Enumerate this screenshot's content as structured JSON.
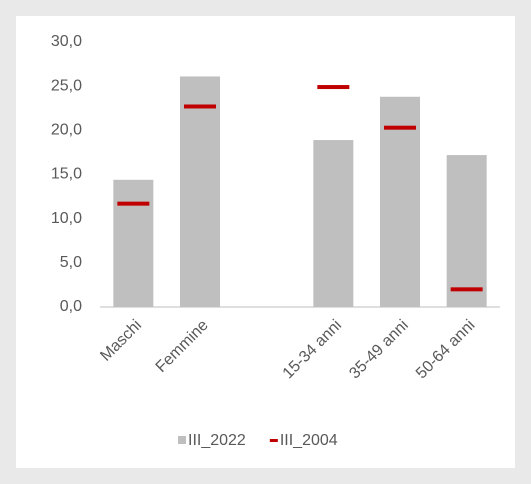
{
  "chart_data": {
    "type": "bar",
    "categories": [
      "Maschi",
      "Femmine",
      null,
      "15-34 anni",
      "35-49 anni",
      "50-64 anni"
    ],
    "series": [
      {
        "name": "III_2022",
        "color": "#bfbfbf",
        "mark": "bar",
        "values": [
          14.4,
          26.1,
          null,
          18.9,
          23.8,
          17.2
        ]
      },
      {
        "name": "III_2004",
        "color": "#c00000",
        "mark": "dash",
        "values": [
          11.7,
          22.7,
          null,
          24.9,
          20.3,
          2.0
        ]
      }
    ],
    "ylim": [
      0,
      30
    ],
    "yticks": [
      {
        "value": 0,
        "label": "0,0"
      },
      {
        "value": 5,
        "label": "5,0"
      },
      {
        "value": 10,
        "label": "10,0"
      },
      {
        "value": 15,
        "label": "15,0"
      },
      {
        "value": 20,
        "label": "20,0"
      },
      {
        "value": 25,
        "label": "25,0"
      },
      {
        "value": 30,
        "label": "30,0"
      }
    ],
    "grid": false,
    "legend": "bottom"
  }
}
